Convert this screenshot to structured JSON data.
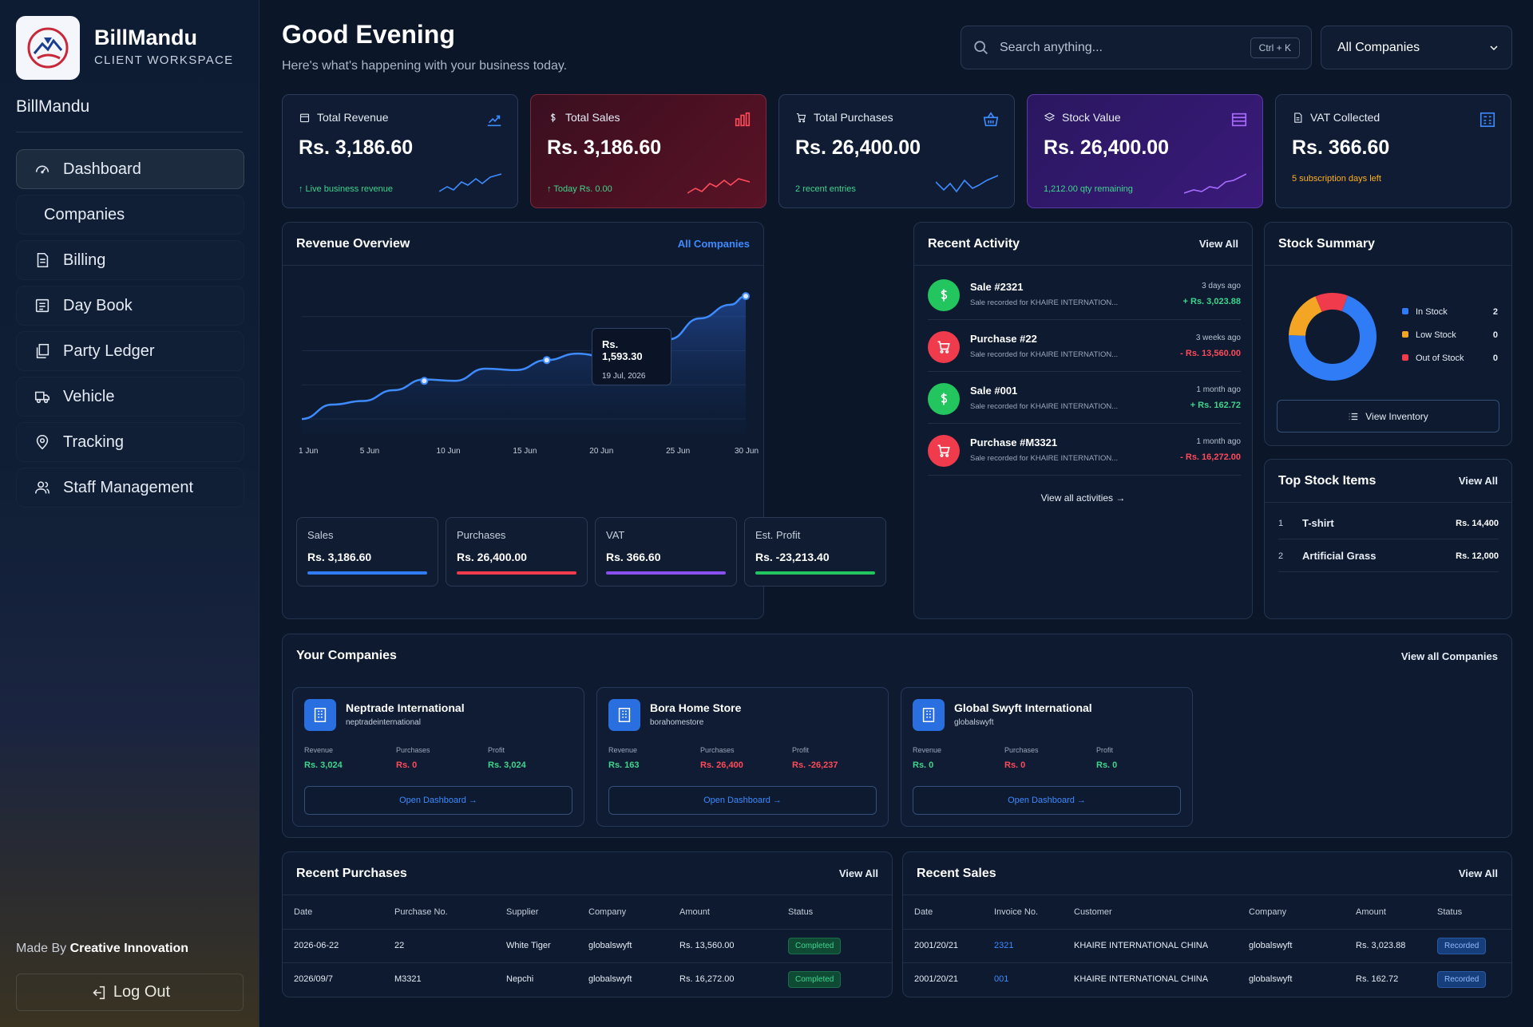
{
  "sidebar": {
    "brand_name": "BillMandu",
    "brand_sub": "CLIENT WORKSPACE",
    "brand_line": "BillMandu",
    "items": [
      {
        "label": "Dashboard",
        "icon": "gauge-icon"
      },
      {
        "label": "Companies",
        "icon": ""
      },
      {
        "label": "Billing",
        "icon": "document-icon"
      },
      {
        "label": "Day Book",
        "icon": "book-icon"
      },
      {
        "label": "Party Ledger",
        "icon": "ledger-icon"
      },
      {
        "label": "Vehicle",
        "icon": "truck-icon"
      },
      {
        "label": "Tracking",
        "icon": "map-pin-icon"
      },
      {
        "label": "Staff Management",
        "icon": "users-icon"
      }
    ],
    "made_by_prefix": "Made By",
    "made_by_name": "Creative Innovation",
    "logout_label": "Log Out"
  },
  "header": {
    "greeting": "Good Evening",
    "subtitle": "Here's what's happening with your business today.",
    "search_placeholder": "Search anything...",
    "search_shortcut": "Ctrl + K",
    "company_filter": "All Companies"
  },
  "stats": [
    {
      "label": "Total Revenue",
      "value": "Rs. 3,186.60",
      "sub": "↑ Live business revenue",
      "accent": "#3d8bff",
      "sub_color": "#3fd58c"
    },
    {
      "label": "Total Sales",
      "value": "Rs. 3,186.60",
      "sub": "↑ Today Rs. 0.00",
      "accent": "#ff4a5a",
      "sub_color": "#3fd58c"
    },
    {
      "label": "Total Purchases",
      "value": "Rs. 26,400.00",
      "sub": "2 recent entries",
      "accent": "#3d8bff",
      "sub_color": "#3fd58c"
    },
    {
      "label": "Stock Value",
      "value": "Rs. 26,400.00",
      "sub": "1,212.00 qty remaining",
      "accent": "#a86bff",
      "sub_color": "#3fd58c"
    },
    {
      "label": "VAT Collected",
      "value": "Rs. 366.60",
      "sub": "5 subscription days left",
      "accent": "#3d8bff",
      "sub_color": "#ffb020"
    }
  ],
  "revenue": {
    "title": "Revenue Overview",
    "filter_link": "All Companies",
    "tooltip_value": "Rs. 1,593.30",
    "tooltip_date": "19 Jul, 2026",
    "summary": [
      {
        "label": "Sales",
        "value": "Rs. 3,186.60",
        "color": "#2f7cf6"
      },
      {
        "label": "Purchases",
        "value": "Rs. 26,400.00",
        "color": "#ef3b4c"
      },
      {
        "label": "VAT",
        "value": "Rs. 366.60",
        "color": "#8a4ff0"
      },
      {
        "label": "Est. Profit",
        "value": "Rs. -23,213.40",
        "color": "#22c55e"
      }
    ]
  },
  "chart_data": {
    "type": "area",
    "title": "",
    "xlabel": "",
    "ylabel": "",
    "categories": [
      "1 Jun",
      "5 Jun",
      "10 Jun",
      "15 Jun",
      "20 Jun",
      "25 Jun",
      "30 Jun"
    ],
    "x": [
      1,
      3,
      5,
      7,
      9,
      11,
      13,
      15,
      17,
      19,
      21,
      23,
      25,
      27,
      29,
      30
    ],
    "series": [
      {
        "values": [
          10,
          30,
          35,
          50,
          65,
          63,
          80,
          78,
          92,
          101,
          96,
          115,
          121,
          150,
          169,
          181
        ]
      }
    ],
    "highlight_points": [
      {
        "x": 9,
        "y": 63
      },
      {
        "x": 17,
        "y": 92
      },
      {
        "x": 23,
        "y": 115
      },
      {
        "x": 30,
        "y": 181
      }
    ],
    "ylim": [
      0,
      200
    ],
    "grid": true,
    "legend": "none"
  },
  "activity": {
    "title": "Recent Activity",
    "view_all": "View All",
    "items": [
      {
        "title": "Sale #2321",
        "desc": "Sale recorded for KHAIRE INTERNATION...",
        "when": "3 days ago",
        "amount": "+ Rs. 3,023.88",
        "kind": "sale"
      },
      {
        "title": "Purchase #22",
        "desc": "Sale recorded for KHAIRE INTERNATION...",
        "when": "3 weeks ago",
        "amount": "- Rs. 13,560.00",
        "kind": "purchase"
      },
      {
        "title": "Sale #001",
        "desc": "Sale recorded for KHAIRE INTERNATION...",
        "when": "1 month ago",
        "amount": "+ Rs. 162.72",
        "kind": "sale"
      },
      {
        "title": "Purchase #M3321",
        "desc": "Sale recorded for KHAIRE INTERNATION...",
        "when": "1 month ago",
        "amount": "- Rs. 16,272.00",
        "kind": "purchase"
      }
    ],
    "view_all_activities": "View all activities →"
  },
  "stock_summary": {
    "title": "Stock Summary",
    "legend": [
      {
        "label": "In Stock",
        "count": "2",
        "color": "#2f7cf6"
      },
      {
        "label": "Low Stock",
        "count": "0",
        "color": "#f5a524"
      },
      {
        "label": "Out of Stock",
        "count": "0",
        "color": "#ef3b4c"
      }
    ],
    "donut_fractions": [
      0.7,
      0.18,
      0.12
    ],
    "view_inventory": "View Inventory"
  },
  "top_stock": {
    "title": "Top Stock Items",
    "view_all": "View All",
    "items": [
      {
        "rank": "1",
        "name": "T-shirt",
        "price": "Rs. 14,400"
      },
      {
        "rank": "2",
        "name": "Artificial Grass",
        "price": "Rs. 12,000"
      }
    ]
  },
  "companies": {
    "title": "Your Companies",
    "view_all": "View all Companies",
    "col_revenue": "Revenue",
    "col_purchases": "Purchases",
    "col_profit": "Profit",
    "open_label": "Open Dashboard →",
    "items": [
      {
        "name": "Neptrade International",
        "slug": "neptradeinternational",
        "revenue": "Rs. 3,024",
        "purchases": "Rs. 0",
        "profit": "Rs. 3,024",
        "profit_color": "#3fd58c"
      },
      {
        "name": "Bora Home Store",
        "slug": "borahomestore",
        "revenue": "Rs. 163",
        "purchases": "Rs. 26,400",
        "profit": "Rs. -26,237",
        "profit_color": "#ff4a5a"
      },
      {
        "name": "Global Swyft International",
        "slug": "globalswyft",
        "revenue": "Rs. 0",
        "purchases": "Rs. 0",
        "profit": "Rs. 0",
        "profit_color": "#3fd58c"
      }
    ]
  },
  "recent_purchases": {
    "title": "Recent Purchases",
    "view_all": "View All",
    "headers": [
      "Date",
      "Purchase No.",
      "Supplier",
      "Company",
      "Amount",
      "Status"
    ],
    "rows": [
      [
        "2026-06-22",
        "22",
        "White Tiger",
        "globalswyft",
        "Rs. 13,560.00",
        "Completed"
      ],
      [
        "2026/09/7",
        "M3321",
        "Nepchi",
        "globalswyft",
        "Rs. 16,272.00",
        "Completed"
      ]
    ]
  },
  "recent_sales": {
    "title": "Recent Sales",
    "view_all": "View All",
    "headers": [
      "Date",
      "Invoice No.",
      "Customer",
      "Company",
      "Amount",
      "Status"
    ],
    "rows": [
      [
        "2001/20/21",
        "2321",
        "KHAIRE INTERNATIONAL CHINA",
        "globalswyft",
        "Rs. 3,023.88",
        "Recorded"
      ],
      [
        "2001/20/21",
        "001",
        "KHAIRE INTERNATIONAL CHINA",
        "globalswyft",
        "Rs. 162.72",
        "Recorded"
      ]
    ]
  }
}
